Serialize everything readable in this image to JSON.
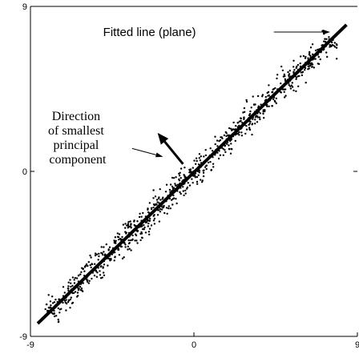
{
  "chart_data": {
    "type": "scatter",
    "title": "",
    "xlabel": "",
    "ylabel": "",
    "xlim": [
      -9,
      9
    ],
    "ylim": [
      -9,
      9
    ],
    "x_ticks": [
      -9,
      0,
      9
    ],
    "y_ticks": [
      9,
      0,
      -9
    ],
    "x_tick_labels": [
      "-9",
      "0",
      "9"
    ],
    "y_tick_labels": [
      "9",
      "0",
      "-9"
    ],
    "grid": false,
    "legend": "none",
    "fitted_line": {
      "x": [
        -8.6,
        8.4
      ],
      "y": [
        -8.3,
        8.0
      ]
    },
    "point_cloud": {
      "count": 900,
      "x_range": [
        -8.0,
        7.6
      ],
      "spread_perpendicular": 0.6,
      "seed": 7
    },
    "principal_arrow": {
      "from": [
        -0.6,
        0.4
      ],
      "to": [
        -2.0,
        2.1
      ]
    },
    "annotations": {
      "fitted_line_label": "Fitted line (plane)",
      "fitted_line_label_pos": [
        -5.0,
        7.6
      ],
      "fitted_line_pointer": {
        "from": [
          4.4,
          7.6
        ],
        "to": [
          7.5,
          7.6
        ]
      },
      "direction_lines": [
        "Direction",
        "of smallest",
        "principal",
        "component"
      ],
      "direction_label_pos": [
        -6.4,
        2.8
      ],
      "direction_pointer": {
        "from": [
          -3.4,
          1.25
        ],
        "to": [
          -1.7,
          0.8
        ]
      }
    },
    "colors": {
      "points": "#000000",
      "line": "#000000",
      "axes": "#000000"
    }
  }
}
